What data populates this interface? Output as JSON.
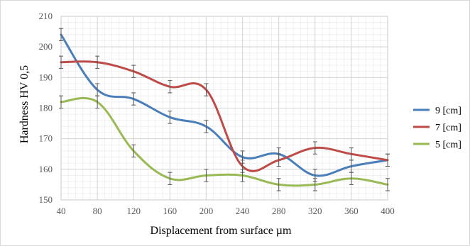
{
  "chart_data": {
    "type": "line",
    "title": "",
    "xlabel": "Displacement from surface µm",
    "ylabel": "Hardness HV 0,5",
    "x": [
      40,
      80,
      120,
      160,
      200,
      240,
      280,
      320,
      360,
      400
    ],
    "xlim": [
      40,
      400
    ],
    "ylim": [
      150,
      210
    ],
    "x_major_step": 40,
    "y_major_step": 10,
    "x_minor_step": 8,
    "y_minor_step": 2,
    "grid": true,
    "smooth": true,
    "error_bars": true,
    "error_bar_halfwidth": 2,
    "legend_position": "right",
    "series": [
      {
        "name": "9  [cm]",
        "color": "#4a7ebb",
        "values": [
          204,
          186,
          183,
          177,
          174,
          164,
          165,
          158,
          161,
          163
        ]
      },
      {
        "name": "7  [cm]",
        "color": "#be4b48",
        "values": [
          195,
          195,
          192,
          187,
          186,
          161,
          163,
          167,
          165,
          163
        ]
      },
      {
        "name": "5  [cm]",
        "color": "#98b954",
        "values": [
          182,
          182,
          166,
          157,
          158,
          158,
          155,
          155,
          157,
          155
        ]
      }
    ]
  }
}
